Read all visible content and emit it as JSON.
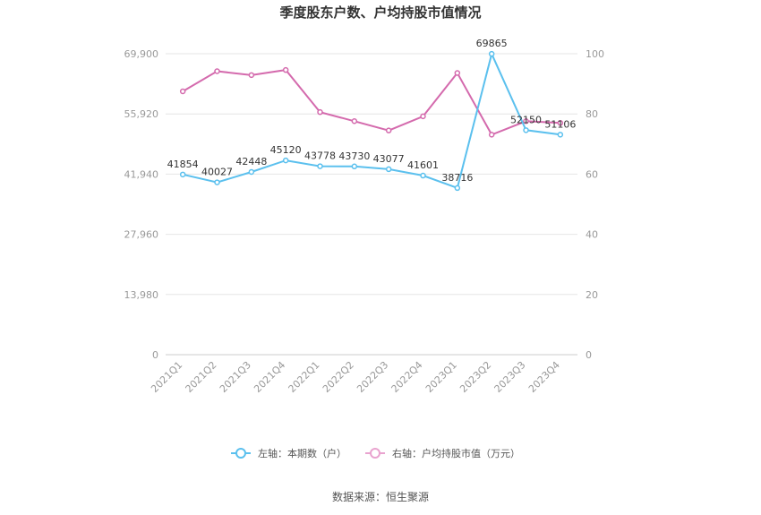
{
  "chart_data": {
    "type": "line",
    "title": "季度股东户数、户均持股市值情况",
    "categories": [
      "2021Q1",
      "2021Q2",
      "2021Q3",
      "2021Q4",
      "2022Q1",
      "2022Q2",
      "2022Q3",
      "2022Q4",
      "2023Q1",
      "2023Q2",
      "2023Q3",
      "2023Q4"
    ],
    "left_axis": {
      "min": 0,
      "max": 69900,
      "ticks": [
        "0",
        "13,980",
        "27,960",
        "41,940",
        "55,920",
        "69,900"
      ],
      "tick_values": [
        0,
        13980,
        27960,
        41940,
        55920,
        69900
      ]
    },
    "right_axis": {
      "min": 0,
      "max": 100,
      "ticks": [
        "0",
        "20",
        "40",
        "60",
        "80",
        "100"
      ],
      "tick_values": [
        0,
        20,
        40,
        60,
        80,
        100
      ]
    },
    "series": [
      {
        "name": "左轴：本期数（户）",
        "axis": "left",
        "color": "#5bc0ee",
        "values": [
          41854,
          40027,
          42448,
          45120,
          43778,
          43730,
          43077,
          41601,
          38716,
          69865,
          52150,
          51106
        ],
        "labels": [
          "41854",
          "40027",
          "42448",
          "45120",
          "43778",
          "43730",
          "43077",
          "41601",
          "38716",
          "69865",
          "52150",
          "51106"
        ]
      },
      {
        "name": "右轴：户均持股市值（万元）",
        "axis": "right",
        "color": "#d46aad",
        "values": [
          87.5,
          94.2,
          92.9,
          94.6,
          80.6,
          77.6,
          74.5,
          79.2,
          93.6,
          73.1,
          77.6,
          77.0
        ]
      }
    ],
    "grid": true,
    "legend_position": "bottom"
  },
  "footer": {
    "source": "数据来源：恒生聚源"
  }
}
